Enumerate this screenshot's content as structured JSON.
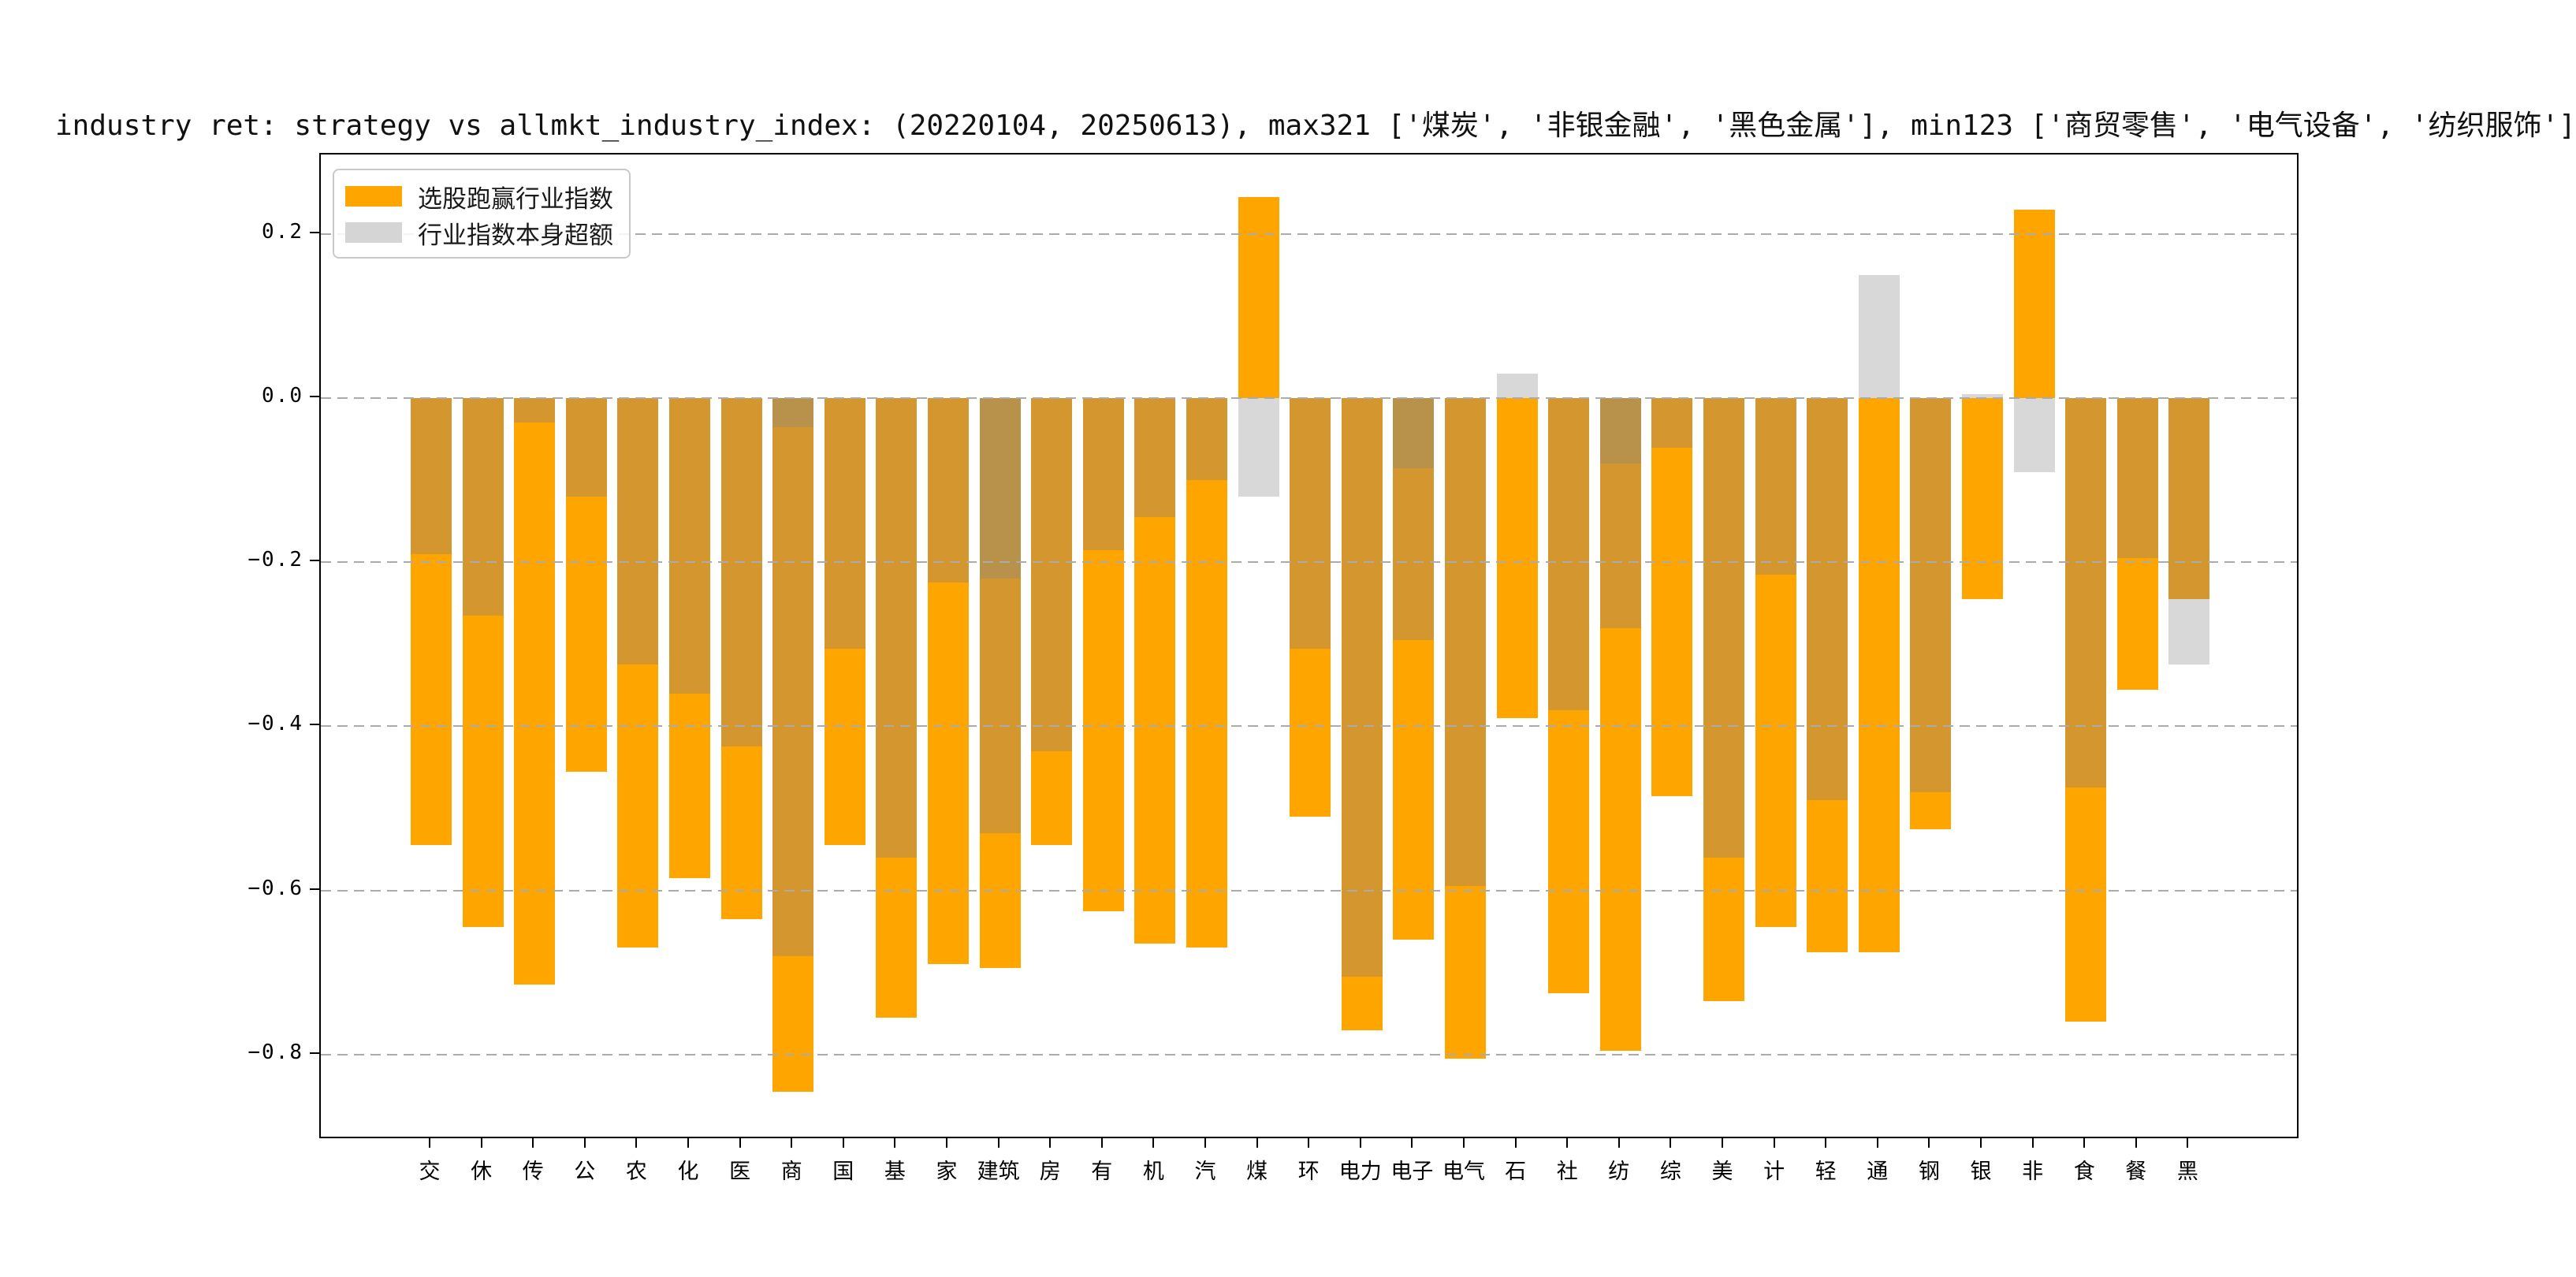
{
  "title": "industry ret: strategy vs allmkt_industry_index: (20220104, 20250613), max321 ['煤炭', '非银金融', '黑色金属'], min123 ['商贸零售', '电气设备', '纺织服饰']",
  "legend": {
    "items": [
      {
        "label": "选股跑赢行业指数",
        "color": "#FFA500"
      },
      {
        "label": "行业指数本身超额",
        "color": "#D5D5D5"
      }
    ]
  },
  "y_axis": {
    "ticks": [
      0.2,
      0.0,
      -0.2,
      -0.4,
      -0.6,
      -0.8
    ],
    "tick_labels": [
      "0.2",
      "0.0",
      "−0.2",
      "−0.4",
      "−0.6",
      "−0.8"
    ],
    "min": -0.904,
    "max": 0.297,
    "grid": "dashed"
  },
  "chart_data": {
    "type": "bar",
    "title": "industry ret: strategy vs allmkt_industry_index: (20220104, 20250613), max321 ['煤炭', '非银金融', '黑色金属'], min123 ['商贸零售', '电气设备', '纺织服饰']",
    "categories": [
      "交",
      "休",
      "传",
      "公",
      "农",
      "化",
      "医",
      "商",
      "国",
      "基",
      "家",
      "建筑",
      "房",
      "有",
      "机",
      "汽",
      "煤",
      "环",
      "电力",
      "电子",
      "电气",
      "石",
      "社",
      "纺",
      "综",
      "美",
      "计",
      "轻",
      "通",
      "钢",
      "银",
      "非",
      "食",
      "餐",
      "黑"
    ],
    "series": [
      {
        "name": "选股跑赢行业指数",
        "color": "#FFA500",
        "values": [
          -0.545,
          -0.645,
          -0.715,
          -0.455,
          -0.67,
          -0.585,
          -0.635,
          -0.845,
          -0.545,
          -0.755,
          -0.69,
          -0.695,
          -0.545,
          -0.625,
          -0.665,
          -0.67,
          0.245,
          -0.51,
          -0.77,
          -0.66,
          -0.805,
          -0.39,
          -0.725,
          -0.795,
          -0.485,
          -0.735,
          -0.645,
          -0.675,
          -0.675,
          -0.525,
          -0.245,
          0.23,
          -0.76,
          -0.355,
          -0.245
        ]
      },
      {
        "name": "行业指数本身超额",
        "color": "#D8D8D8",
        "values": [
          -0.19,
          -0.265,
          -0.03,
          -0.12,
          -0.325,
          -0.36,
          -0.425,
          -0.68,
          -0.305,
          -0.56,
          -0.225,
          -0.53,
          -0.43,
          -0.185,
          -0.145,
          -0.1,
          -0.12,
          -0.305,
          -0.705,
          -0.295,
          -0.595,
          0.03,
          -0.38,
          -0.28,
          -0.06,
          -0.56,
          -0.215,
          -0.49,
          0.15,
          -0.48,
          0.005,
          -0.09,
          -0.475,
          -0.195,
          -0.325
        ]
      }
    ],
    "secondary_gray_overlay_values": [
      null,
      null,
      null,
      null,
      null,
      null,
      null,
      -0.035,
      null,
      null,
      null,
      -0.22,
      null,
      null,
      null,
      null,
      null,
      null,
      null,
      -0.085,
      null,
      null,
      null,
      -0.08,
      null,
      null,
      null,
      null,
      null,
      null,
      null,
      null,
      null,
      null,
      null
    ],
    "colors": {
      "orange_only": "#FFA500",
      "overlap_tan": "#D4972F",
      "double_overlap_dark": "#B8914B",
      "gray_only": "#D8D8D8",
      "grid": "#ABABAB"
    },
    "ylim": [
      -0.904,
      0.297
    ],
    "legend_position": "upper-left",
    "xlabel": "",
    "ylabel": ""
  }
}
